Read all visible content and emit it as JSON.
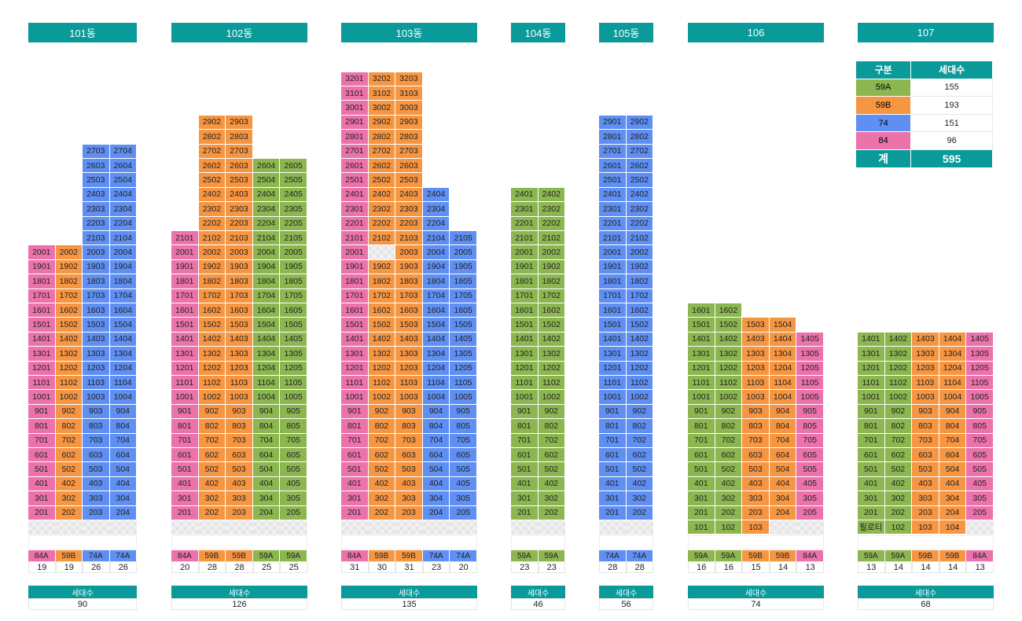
{
  "colors": {
    "59A": "#8cb650",
    "59B": "#f79642",
    "74": "#5f8ff2",
    "74A": "#5f8ff2",
    "84": "#ec72ab",
    "84A": "#ec72ab",
    "header": "#0a9a9a",
    "void": "#e0e0e0"
  },
  "legend": {
    "headers": [
      "구분",
      "세대수"
    ],
    "rows": [
      {
        "type": "59A",
        "count": "155"
      },
      {
        "type": "59B",
        "count": "193"
      },
      {
        "type": "74",
        "count": "151"
      },
      {
        "type": "84",
        "count": "96"
      }
    ],
    "total_label": "계",
    "total_value": "595"
  },
  "buildings": [
    {
      "name": "101동",
      "total_label": "세대수",
      "total": "90",
      "columns": [
        {
          "type": "84A",
          "count": "19",
          "bottom": 2,
          "top": 20
        },
        {
          "type": "59B",
          "count": "19",
          "bottom": 2,
          "top": 20
        },
        {
          "type": "74A",
          "count": "26",
          "bottom": 2,
          "top": 27
        },
        {
          "type": "74A",
          "count": "26",
          "bottom": 2,
          "top": 27
        }
      ],
      "gaps": [],
      "labels": {}
    },
    {
      "name": "102동",
      "total_label": "세대수",
      "total": "126",
      "columns": [
        {
          "type": "84A",
          "count": "20",
          "bottom": 2,
          "top": 21
        },
        {
          "type": "59B",
          "count": "28",
          "bottom": 2,
          "top": 29
        },
        {
          "type": "59B",
          "count": "28",
          "bottom": 2,
          "top": 29
        },
        {
          "type": "59A",
          "count": "25",
          "bottom": 2,
          "top": 26
        },
        {
          "type": "59A",
          "count": "25",
          "bottom": 2,
          "top": 26
        }
      ],
      "gaps": [],
      "labels": {}
    },
    {
      "name": "103동",
      "total_label": "세대수",
      "total": "135",
      "columns": [
        {
          "type": "84A",
          "count": "31",
          "bottom": 2,
          "top": 32
        },
        {
          "type": "59B",
          "count": "30",
          "bottom": 2,
          "top": 32
        },
        {
          "type": "59B",
          "count": "31",
          "bottom": 2,
          "top": 32
        },
        {
          "type": "74A",
          "count": "23",
          "bottom": 2,
          "top": 24
        },
        {
          "type": "74A",
          "count": "20",
          "bottom": 2,
          "top": 21
        }
      ],
      "gaps": [
        {
          "col": 1,
          "floor": 20
        }
      ],
      "labels": {}
    },
    {
      "name": "104동",
      "total_label": "세대수",
      "total": "46",
      "columns": [
        {
          "type": "59A",
          "count": "23",
          "bottom": 2,
          "top": 24
        },
        {
          "type": "59A",
          "count": "23",
          "bottom": 2,
          "top": 24
        }
      ],
      "gaps": [],
      "labels": {}
    },
    {
      "name": "105동",
      "total_label": "세대수",
      "total": "56",
      "columns": [
        {
          "type": "74A",
          "count": "28",
          "bottom": 2,
          "top": 29
        },
        {
          "type": "74A",
          "count": "28",
          "bottom": 2,
          "top": 29
        }
      ],
      "gaps": [],
      "labels": {}
    },
    {
      "name": "106",
      "total_label": "세대수",
      "total": "74",
      "columns": [
        {
          "type": "59A",
          "count": "16",
          "bottom": 1,
          "top": 16
        },
        {
          "type": "59A",
          "count": "16",
          "bottom": 1,
          "top": 16
        },
        {
          "type": "59B",
          "count": "15",
          "bottom": 1,
          "top": 15
        },
        {
          "type": "59B",
          "count": "14",
          "bottom": 2,
          "top": 15
        },
        {
          "type": "84A",
          "count": "13",
          "bottom": 2,
          "top": 14
        }
      ],
      "gaps": [],
      "labels": {}
    },
    {
      "name": "107",
      "total_label": "세대수",
      "total": "68",
      "columns": [
        {
          "type": "59A",
          "count": "13",
          "bottom": 1,
          "top": 14
        },
        {
          "type": "59A",
          "count": "14",
          "bottom": 1,
          "top": 14
        },
        {
          "type": "59B",
          "count": "14",
          "bottom": 1,
          "top": 14
        },
        {
          "type": "59B",
          "count": "14",
          "bottom": 1,
          "top": 14
        },
        {
          "type": "84A",
          "count": "13",
          "bottom": 2,
          "top": 14
        }
      ],
      "gaps": [],
      "labels": {
        "0-1": "필로티"
      }
    }
  ]
}
